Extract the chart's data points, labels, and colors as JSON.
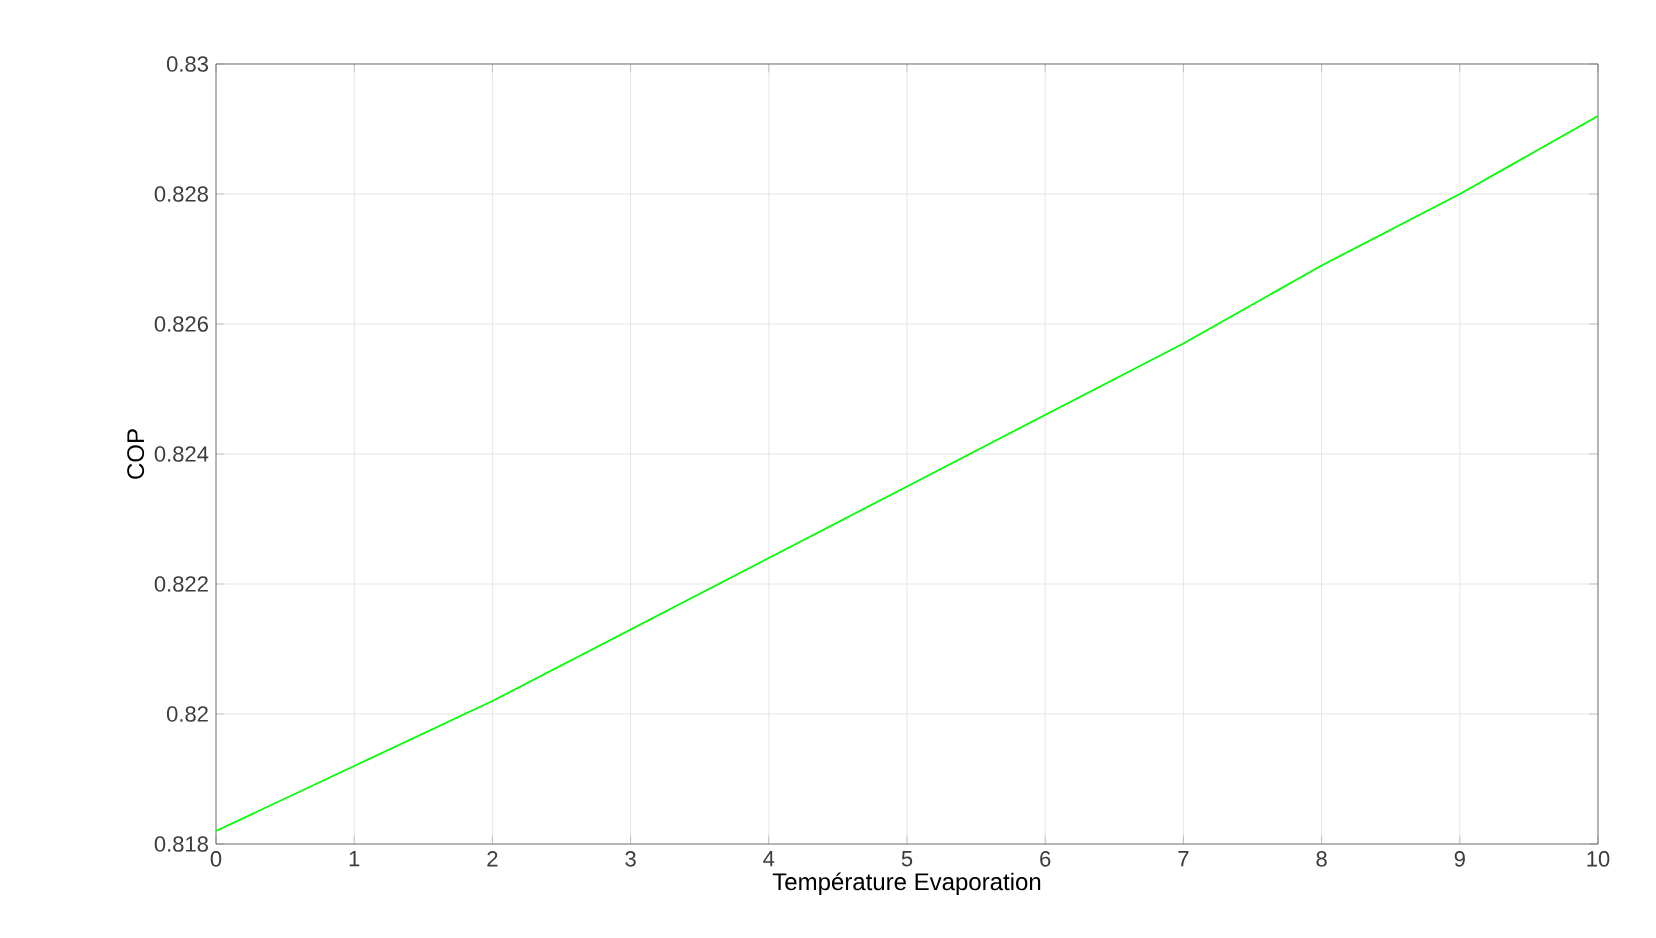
{
  "chart_data": {
    "type": "line",
    "xlabel": "Température Evaporation",
    "ylabel": "COP",
    "x": [
      0,
      1,
      2,
      3,
      4,
      5,
      6,
      7,
      8,
      9,
      10
    ],
    "series": [
      {
        "color": "#00ff00",
        "values": [
          0.8182,
          0.8192,
          0.8202,
          0.8213,
          0.8224,
          0.8235,
          0.8246,
          0.8257,
          0.8269,
          0.828,
          0.8292
        ]
      }
    ],
    "xlim": [
      0,
      10
    ],
    "ylim": [
      0.818,
      0.83
    ],
    "xticks": [
      0,
      1,
      2,
      3,
      4,
      5,
      6,
      7,
      8,
      9,
      10
    ],
    "yticks": [
      0.818,
      0.82,
      0.822,
      0.824,
      0.826,
      0.828,
      0.83
    ],
    "grid": true,
    "marker": "none",
    "line_style": "solid"
  }
}
